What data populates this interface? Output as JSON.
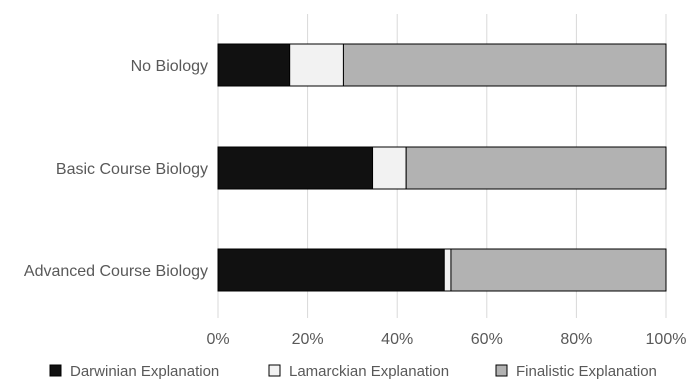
{
  "chart_data": {
    "type": "bar",
    "orientation": "horizontal",
    "stacked": "percent",
    "categories": [
      "No Biology",
      "Basic Course Biology",
      "Advanced Course Biology"
    ],
    "series": [
      {
        "name": "Darwinian Explanation",
        "color": "#111111",
        "values": [
          16,
          34.5,
          50.5
        ]
      },
      {
        "name": "Lamarckian Explanation",
        "color": "#f2f2f2",
        "values": [
          12,
          7.5,
          1.5
        ]
      },
      {
        "name": "Finalistic Explanation",
        "color": "#b2b2b2",
        "values": [
          72,
          58,
          48
        ]
      }
    ],
    "xlim": [
      0,
      100
    ],
    "xticks": [
      "0%",
      "20%",
      "40%",
      "60%",
      "80%",
      "100%"
    ],
    "grid": "vertical",
    "legend": "bottom",
    "title": "",
    "xlabel": "",
    "ylabel": ""
  }
}
